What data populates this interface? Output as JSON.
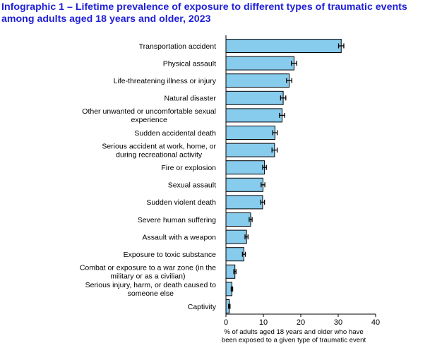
{
  "header": {
    "title": "Infographic 1 –  Lifetime prevalence of exposure to different types of traumatic events among adults aged 18 years and older, 2023"
  },
  "colors": {
    "title": "#1f1fd9",
    "bar_fill": "#87cbed",
    "bar_stroke": "#000000"
  },
  "chart_data": {
    "type": "bar",
    "orientation": "horizontal",
    "title": "Infographic 1 –  Lifetime prevalence of exposure to different types of traumatic events among adults aged 18 years and older, 2023",
    "xlabel": "% of adults aged 18 years and older who have been exposed to a given type of traumatic event",
    "ylabel": "",
    "xlim": [
      0,
      40
    ],
    "xticks": [
      0,
      10,
      20,
      30,
      40
    ],
    "grid": false,
    "error_bars": true,
    "categories": [
      "Transportation accident",
      "Physical assault",
      "Life-threatening illness or injury",
      "Natural disaster",
      "Other unwanted or uncomfortable sexual experience",
      "Sudden accidental death",
      "Serious accident at work, home, or during recreational activity",
      "Fire or explosion",
      "Sexual assault",
      "Sudden violent death",
      "Severe human suffering",
      "Assault with a weapon",
      "Exposure to toxic substance",
      "Combat or exposure to a war zone (in the military or as a civilian)",
      "Serious injury, harm, or death caused to someone else",
      "Captivity"
    ],
    "category_lines": [
      [
        "Transportation accident"
      ],
      [
        "Physical assault"
      ],
      [
        "Life-threatening illness or injury"
      ],
      [
        "Natural disaster"
      ],
      [
        "Other unwanted or uncomfortable sexual",
        "experience"
      ],
      [
        "Sudden accidental death"
      ],
      [
        "Serious accident at work, home, or",
        "during recreational activity"
      ],
      [
        "Fire or explosion"
      ],
      [
        "Sexual assault"
      ],
      [
        "Sudden violent death"
      ],
      [
        "Severe human suffering"
      ],
      [
        "Assault with a weapon"
      ],
      [
        "Exposure to toxic substance"
      ],
      [
        "Combat or exposure to a war zone (in the",
        "military or as a civilian)"
      ],
      [
        "Serious injury, harm, or death caused to",
        "someone else"
      ],
      [
        "Captivity"
      ]
    ],
    "values": [
      30.8,
      18.2,
      16.9,
      15.3,
      15.0,
      13.1,
      13.0,
      10.3,
      9.9,
      9.8,
      6.6,
      5.5,
      4.8,
      2.4,
      1.6,
      0.9
    ],
    "error": [
      0.7,
      0.7,
      0.7,
      0.7,
      0.7,
      0.6,
      0.7,
      0.5,
      0.5,
      0.5,
      0.4,
      0.4,
      0.4,
      0.3,
      0.2,
      0.2
    ]
  }
}
